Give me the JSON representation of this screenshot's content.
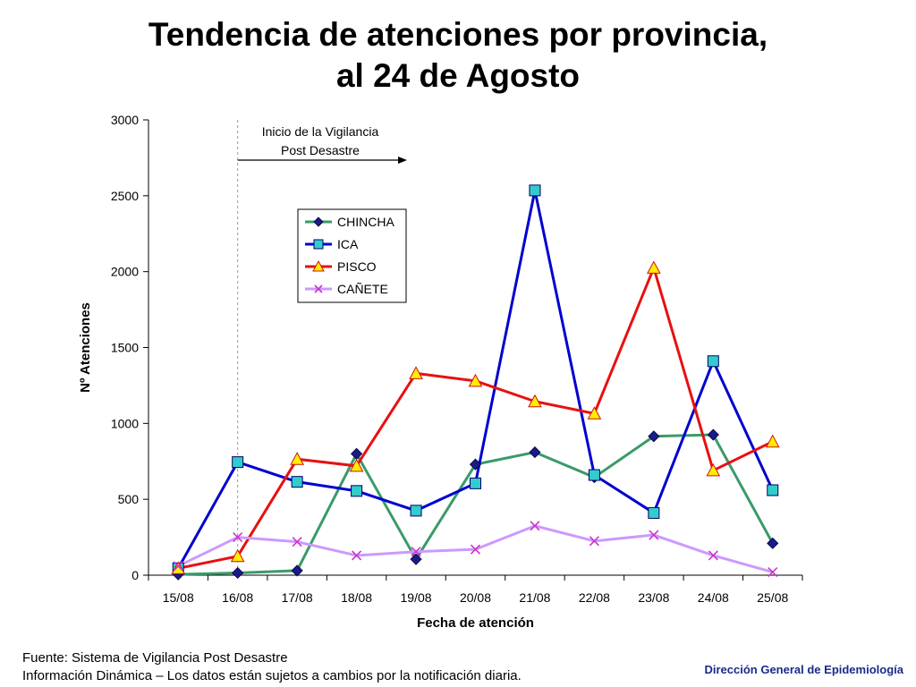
{
  "title": {
    "line1": "Tendencia de atenciones por provincia,",
    "line2": "al 24 de Agosto"
  },
  "footer": {
    "source_line1": "Fuente: Sistema de Vigilancia Post Desastre",
    "source_line2": "Información Dinámica – Los datos están sujetos a cambios por la notificación diaria.",
    "organization": "Dirección General de Epidemiología"
  },
  "chart_data": {
    "type": "line",
    "x": [
      "15/08",
      "16/08",
      "17/08",
      "18/08",
      "19/08",
      "20/08",
      "21/08",
      "22/08",
      "23/08",
      "24/08",
      "25/08"
    ],
    "xlabel": "Fecha de atención",
    "ylabel": "Nº Atenciones",
    "ylim": [
      0,
      3000
    ],
    "yticks": [
      0,
      500,
      1000,
      1500,
      2000,
      2500,
      3000
    ],
    "grid": false,
    "legend_position": "upper-center",
    "annotation": {
      "line1": "Inicio de la Vigilancia",
      "line2": "Post Desastre",
      "at_x": "16/08"
    },
    "series": [
      {
        "name": "CHINCHA",
        "line_color": "#3a9a6a",
        "marker": "diamond",
        "marker_color": "#1a1a8c",
        "values": [
          5,
          15,
          30,
          800,
          105,
          730,
          810,
          645,
          915,
          925,
          210
        ]
      },
      {
        "name": "ICA",
        "line_color": "#0000d0",
        "marker": "square",
        "marker_color": "#33cccc",
        "values": [
          45,
          745,
          615,
          555,
          425,
          605,
          2535,
          660,
          410,
          1410,
          560
        ]
      },
      {
        "name": "PISCO",
        "line_color": "#e81010",
        "marker": "triangle",
        "marker_color": "#ffee00",
        "values": [
          45,
          125,
          765,
          720,
          1330,
          1280,
          1145,
          1065,
          2025,
          690,
          880
        ]
      },
      {
        "name": "CAÑETE",
        "line_color": "#cc99ff",
        "marker": "x",
        "marker_color": "#cc33cc",
        "values": [
          60,
          250,
          220,
          130,
          155,
          170,
          325,
          225,
          265,
          130,
          20
        ]
      }
    ]
  }
}
